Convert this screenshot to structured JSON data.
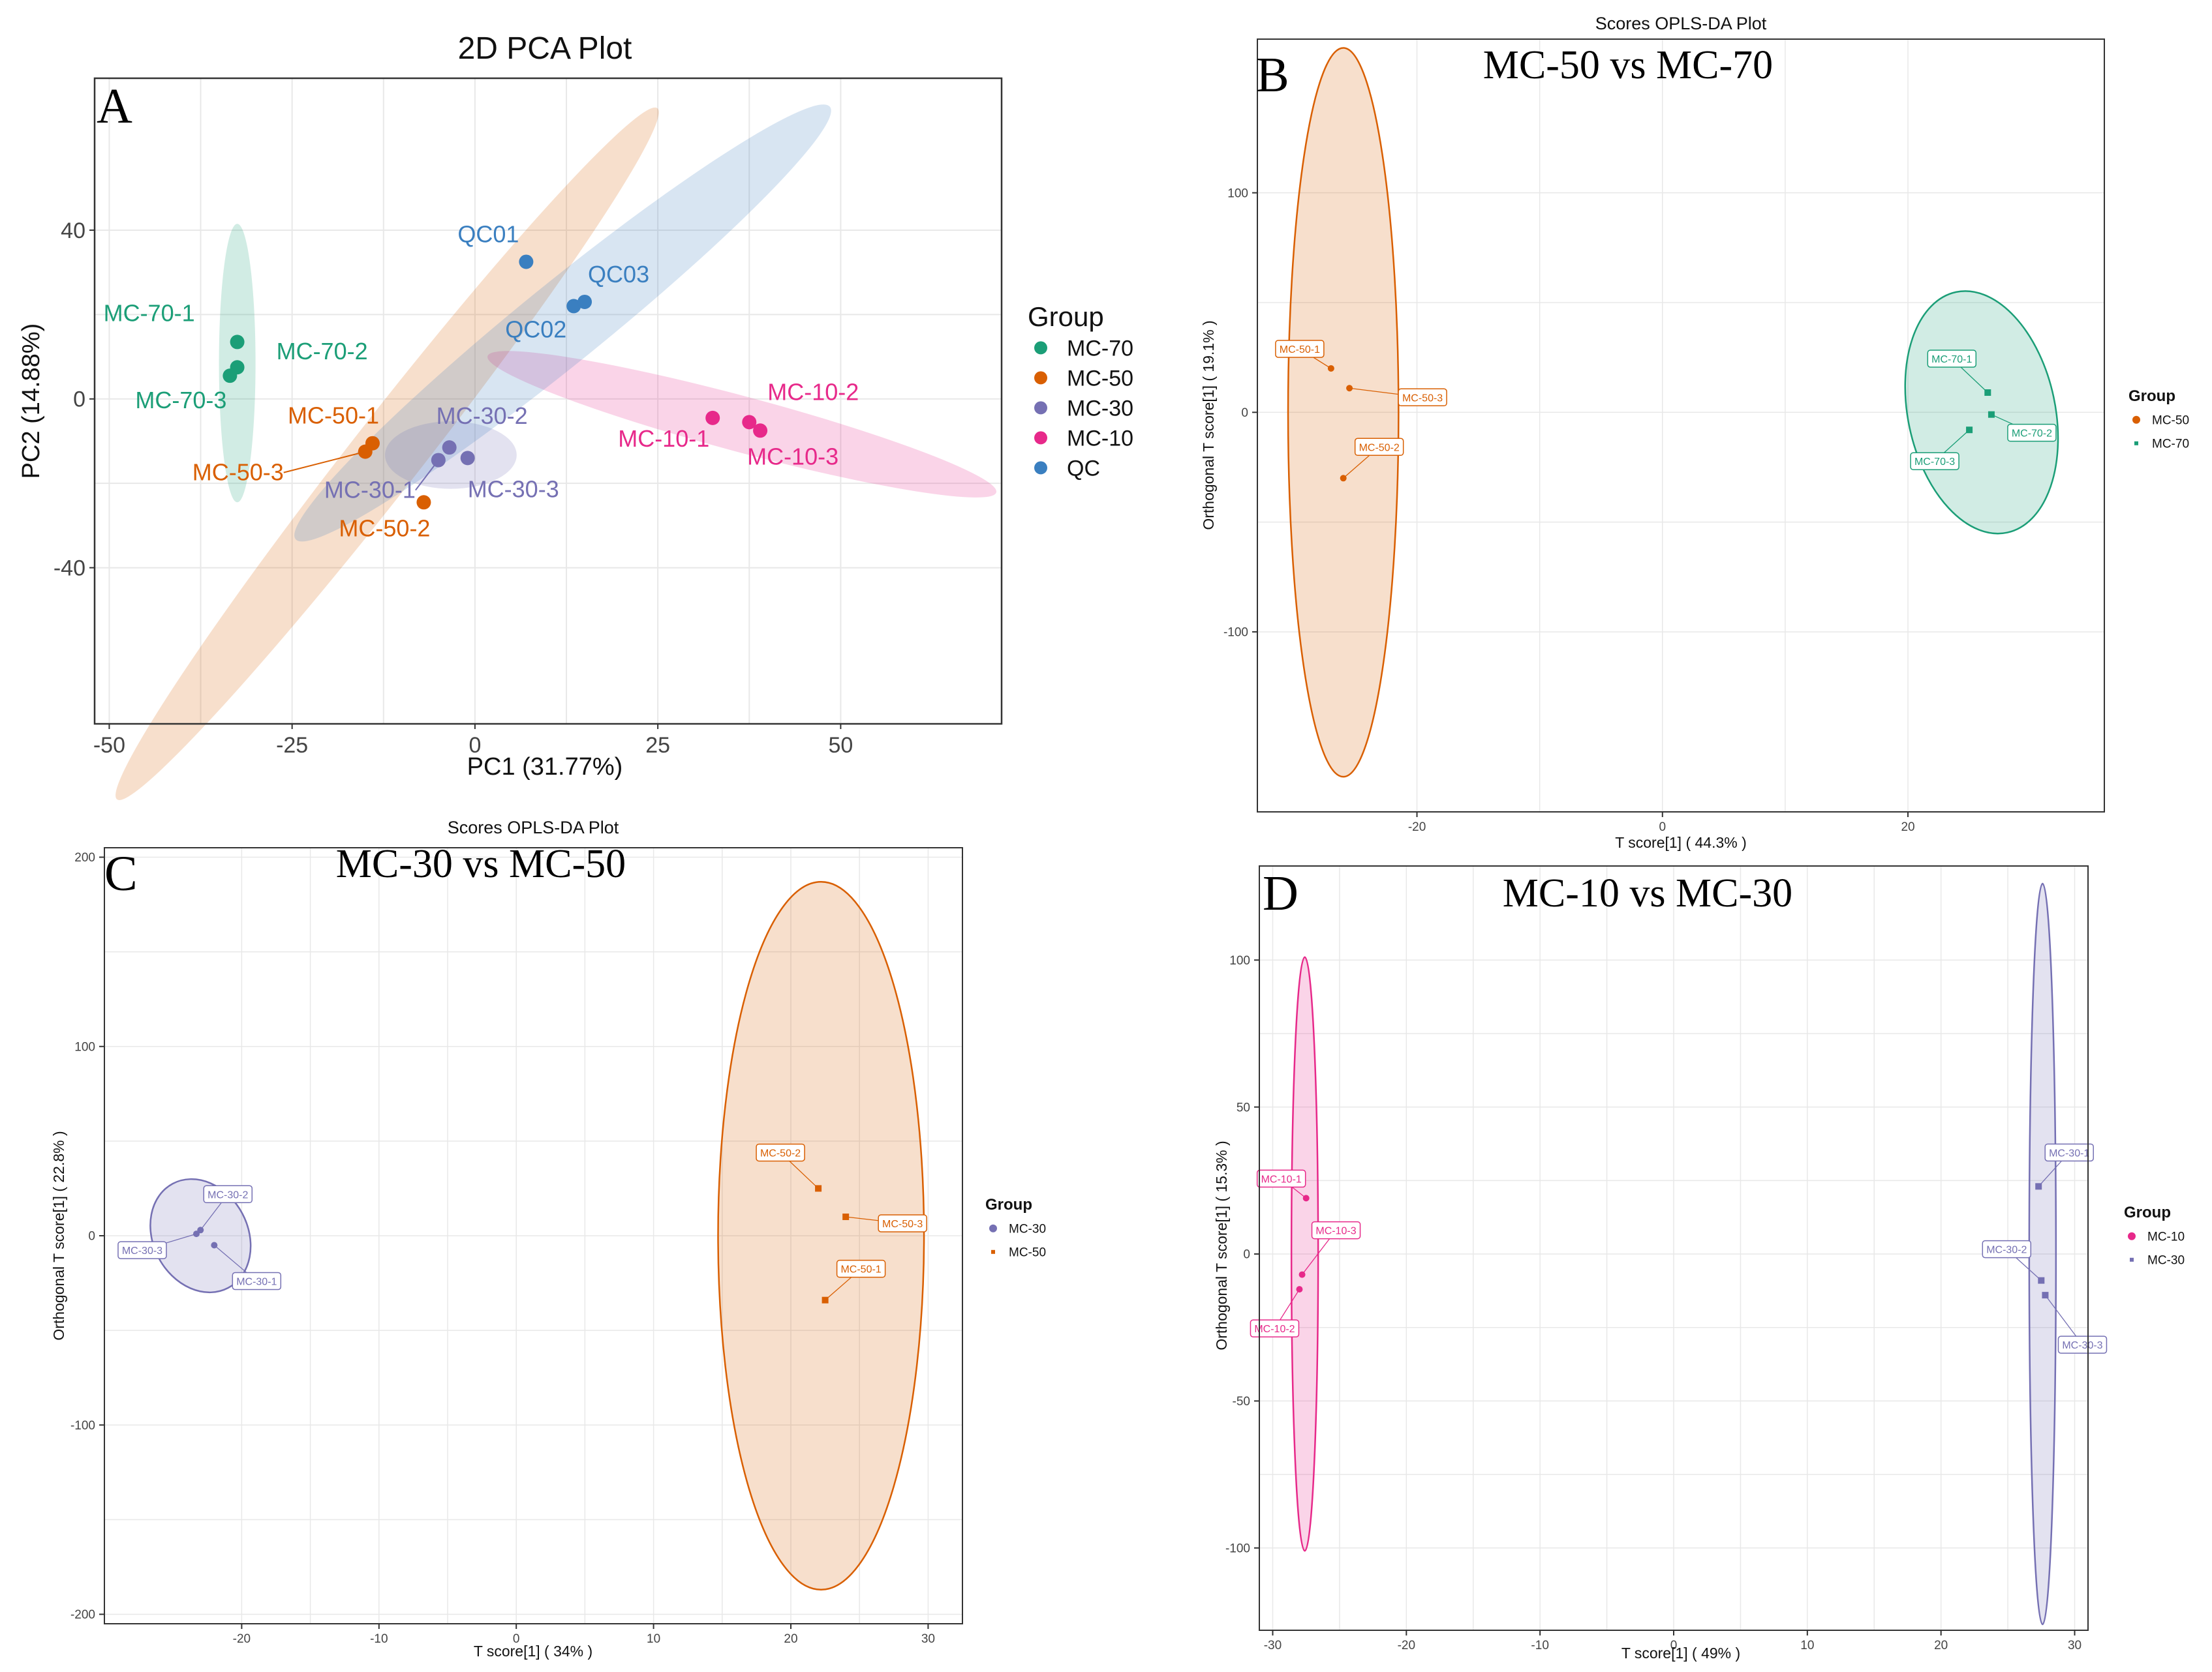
{
  "colors": {
    "MC-70": "#1b9e77",
    "MC-50": "#d95f02",
    "MC-30": "#7570b3",
    "MC-10": "#e7298a",
    "QC": "#3a7fc0",
    "frame": "#333333",
    "grid": "#e8e8e8"
  },
  "chart_data": [
    {
      "panel": "A",
      "type": "scatter",
      "title": "2D PCA Plot",
      "xlabel": "PC1 (31.77%)",
      "ylabel": "PC2 (14.88%)",
      "xlim": [
        -52,
        72
      ],
      "ylim": [
        -77,
        76
      ],
      "xticks": [
        -50,
        -25,
        0,
        25,
        50
      ],
      "yticks": [
        40,
        0,
        -40
      ],
      "grid": true,
      "legend": {
        "title": "Group",
        "position": "right",
        "entries": [
          "MC-70",
          "MC-50",
          "MC-30",
          "MC-10",
          "QC"
        ]
      },
      "series": [
        {
          "name": "MC-70",
          "points": [
            {
              "label": "MC-70-1",
              "x": -32.5,
              "y": 13.5
            },
            {
              "label": "MC-70-2",
              "x": -32.5,
              "y": 7.5
            },
            {
              "label": "MC-70-3",
              "x": -33.5,
              "y": 5.5
            }
          ],
          "ellipse": {
            "cx": -32.5,
            "cy": 8.5,
            "rx": 2.5,
            "ry": 33,
            "angle": 0
          }
        },
        {
          "name": "MC-50",
          "points": [
            {
              "label": "MC-50-1",
              "x": -14,
              "y": -10.5
            },
            {
              "label": "MC-50-2",
              "x": -7,
              "y": -24.5
            },
            {
              "label": "MC-50-3",
              "x": -15,
              "y": -12.5
            }
          ],
          "ellipse": {
            "cx": -12,
            "cy": -13,
            "rx": 60,
            "ry": 7,
            "angle": 52
          }
        },
        {
          "name": "MC-30",
          "points": [
            {
              "label": "MC-30-1",
              "x": -5,
              "y": -14.5
            },
            {
              "label": "MC-30-2",
              "x": -3.5,
              "y": -11.5
            },
            {
              "label": "MC-30-3",
              "x": -1,
              "y": -14
            }
          ],
          "ellipse": {
            "cx": -3.3,
            "cy": -13.3,
            "rx": 9,
            "ry": 8,
            "angle": 0
          }
        },
        {
          "name": "MC-10",
          "points": [
            {
              "label": "MC-10-1",
              "x": 32.5,
              "y": -4.5
            },
            {
              "label": "MC-10-2",
              "x": 37.5,
              "y": -5.5
            },
            {
              "label": "MC-10-3",
              "x": 39,
              "y": -7.5
            }
          ],
          "ellipse": {
            "cx": 36.5,
            "cy": -6,
            "rx": 36,
            "ry": 5.5,
            "angle": -15
          }
        },
        {
          "name": "QC",
          "points": [
            {
              "label": "QC01",
              "x": 7,
              "y": 32.5
            },
            {
              "label": "QC02",
              "x": 13.5,
              "y": 22
            },
            {
              "label": "QC03",
              "x": 15,
              "y": 23
            }
          ],
          "ellipse": {
            "cx": 12,
            "cy": 18,
            "rx": 47,
            "ry": 8,
            "angle": 39
          }
        }
      ]
    },
    {
      "panel": "B",
      "type": "scatter",
      "title": "Scores OPLS-DA Plot",
      "subtitle": "MC-50 vs MC-70",
      "xlabel": "T score[1] ( 44.3% )",
      "ylabel": "Orthogonal T score[1] ( 19.1% )",
      "xlim": [
        -33,
        36
      ],
      "ylim": [
        -182,
        170
      ],
      "xticks": [
        -20,
        0,
        20
      ],
      "yticks": [
        100,
        0,
        -100
      ],
      "grid": true,
      "legend": {
        "title": "Group",
        "position": "right",
        "entries": [
          "MC-50",
          "MC-70"
        ]
      },
      "series": [
        {
          "name": "MC-50",
          "marker": "circle",
          "points": [
            {
              "label": "MC-50-1",
              "x": -27,
              "y": 20
            },
            {
              "label": "MC-50-2",
              "x": -26,
              "y": -30
            },
            {
              "label": "MC-50-3",
              "x": -25.5,
              "y": 11
            }
          ],
          "ellipse": {
            "cx": -26,
            "cy": 0,
            "rx": 4.5,
            "ry": 166,
            "angle": 0
          }
        },
        {
          "name": "MC-70",
          "marker": "square",
          "points": [
            {
              "label": "MC-70-1",
              "x": 26.5,
              "y": 9
            },
            {
              "label": "MC-70-2",
              "x": 26.8,
              "y": -1
            },
            {
              "label": "MC-70-3",
              "x": 25,
              "y": -8
            }
          ],
          "ellipse": {
            "cx": 26,
            "cy": 0,
            "rx": 6,
            "ry": 56,
            "angle": 12
          }
        }
      ]
    },
    {
      "panel": "C",
      "type": "scatter",
      "title": "Scores OPLS-DA Plot",
      "subtitle": "MC-30 vs MC-50",
      "xlabel": "T score[1] ( 34% )",
      "ylabel": "Orthogonal T score[1] ( 22.8% )",
      "xlim": [
        -30,
        32.5
      ],
      "ylim": [
        -205,
        205
      ],
      "xticks": [
        -20,
        -10,
        0,
        10,
        20,
        30
      ],
      "yticks": [
        200,
        100,
        0,
        -100,
        -200
      ],
      "grid": true,
      "legend": {
        "title": "Group",
        "position": "right",
        "entries": [
          "MC-30",
          "MC-50"
        ]
      },
      "series": [
        {
          "name": "MC-30",
          "marker": "circle",
          "points": [
            {
              "label": "MC-30-1",
              "x": -22,
              "y": -5
            },
            {
              "label": "MC-30-2",
              "x": -23,
              "y": 3
            },
            {
              "label": "MC-30-3",
              "x": -23.3,
              "y": 1
            }
          ],
          "ellipse": {
            "cx": -23,
            "cy": 0,
            "rx": 4.3,
            "ry": 25,
            "angle": -62
          }
        },
        {
          "name": "MC-50",
          "marker": "square",
          "points": [
            {
              "label": "MC-50-1",
              "x": 22.5,
              "y": -34
            },
            {
              "label": "MC-50-2",
              "x": 22,
              "y": 25
            },
            {
              "label": "MC-50-3",
              "x": 24,
              "y": 10
            }
          ],
          "ellipse": {
            "cx": 22.2,
            "cy": 0,
            "rx": 7.5,
            "ry": 187,
            "angle": 0
          }
        }
      ]
    },
    {
      "panel": "D",
      "type": "scatter",
      "title": "",
      "subtitle": "MC-10 vs MC-30",
      "xlabel": "T score[1] ( 49% )",
      "ylabel": "Orthogonal T score[1] ( 15.3% )",
      "xlim": [
        -31,
        31
      ],
      "ylim": [
        -128,
        132
      ],
      "xticks": [
        -30,
        -20,
        -10,
        0,
        10,
        20,
        30
      ],
      "yticks": [
        100,
        50,
        0,
        -50,
        -100
      ],
      "grid": true,
      "legend": {
        "title": "Group",
        "position": "right",
        "entries": [
          "MC-10",
          "MC-30"
        ]
      },
      "series": [
        {
          "name": "MC-10",
          "marker": "circle",
          "points": [
            {
              "label": "MC-10-1",
              "x": -27.5,
              "y": 19
            },
            {
              "label": "MC-10-2",
              "x": -28,
              "y": -12
            },
            {
              "label": "MC-10-3",
              "x": -27.8,
              "y": -7
            }
          ],
          "ellipse": {
            "cx": -27.6,
            "cy": 0,
            "rx": 1,
            "ry": 101,
            "angle": 0
          }
        },
        {
          "name": "MC-30",
          "marker": "square",
          "points": [
            {
              "label": "MC-30-1",
              "x": 27.3,
              "y": 23
            },
            {
              "label": "MC-30-2",
              "x": 27.5,
              "y": -9
            },
            {
              "label": "MC-30-3",
              "x": 27.8,
              "y": -14
            }
          ],
          "ellipse": {
            "cx": 27.6,
            "cy": 0,
            "rx": 1,
            "ry": 126,
            "angle": 0
          }
        }
      ]
    }
  ]
}
